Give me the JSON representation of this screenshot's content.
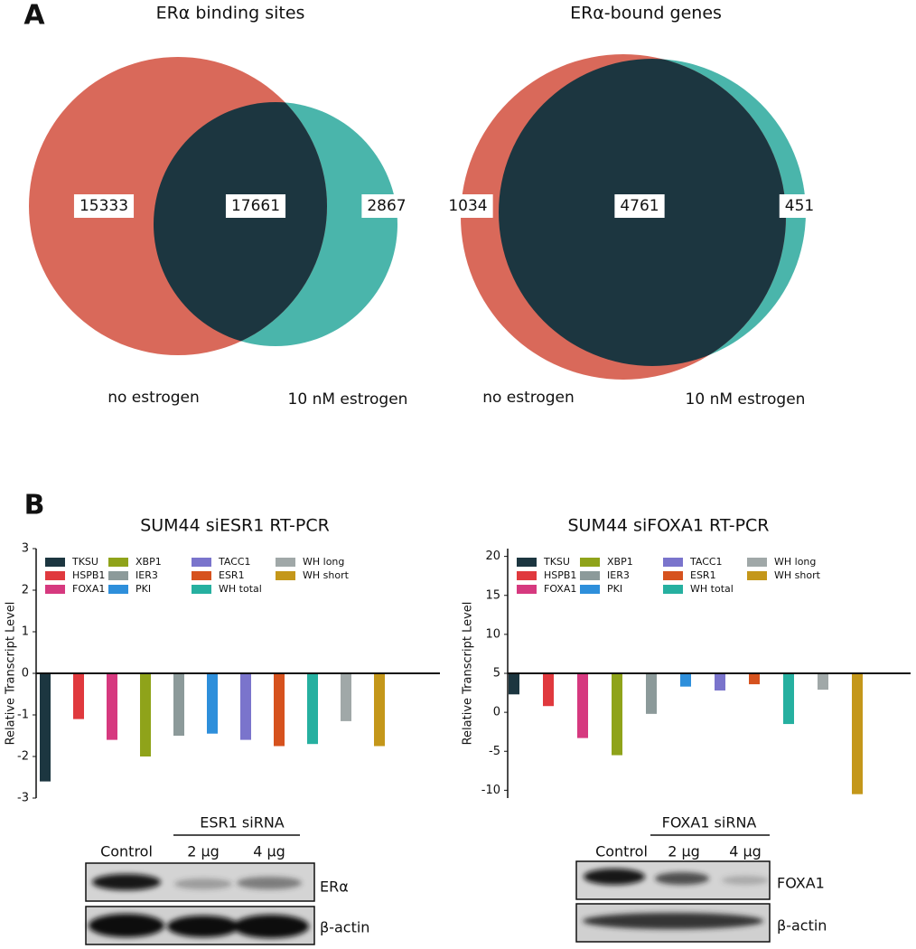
{
  "panels": [
    "A",
    "B"
  ],
  "chart_data": [
    {
      "type": "venn",
      "title": "ERα binding sites",
      "sets": [
        {
          "name": "no estrogen",
          "color": "#d9695a"
        },
        {
          "name": "10 nM estrogen",
          "color": "#4ab5ab"
        }
      ],
      "overlap_color": "#1c3640",
      "values": [
        15333,
        17661,
        2867
      ]
    },
    {
      "type": "venn",
      "title": "ERα-bound genes",
      "sets": [
        {
          "name": "no estrogen",
          "color": "#d9695a"
        },
        {
          "name": "10 nM estrogen",
          "color": "#4ab5ab"
        }
      ],
      "overlap_color": "#1c3640",
      "values": [
        1034,
        4761,
        451
      ]
    },
    {
      "type": "bar",
      "title": "SUM44 siESR1 RT-PCR",
      "y_label": "Relative Transcript Level",
      "categories": [
        "TKSU",
        "HSPB1",
        "FOXA1",
        "XBP1",
        "IER3",
        "PKI",
        "TACC1",
        "ESR1",
        "WH total",
        "WH long",
        "WH short"
      ],
      "colors": [
        "#1c3640",
        "#e0393e",
        "#d6397f",
        "#8fa31a",
        "#8c9a9a",
        "#2e8fdb",
        "#7a74cc",
        "#d6521e",
        "#26b0a0",
        "#a0a8a8",
        "#c4971a"
      ],
      "values": [
        -2.6,
        -1.1,
        -1.6,
        -2.0,
        -1.5,
        -1.45,
        -1.6,
        -1.75,
        -1.7,
        -1.15,
        -1.75
      ],
      "baseline": 0,
      "ylim": [
        -3,
        3
      ],
      "yticks": [
        -3,
        -2,
        -1,
        0,
        1,
        2,
        3
      ],
      "grid": false,
      "legend": "top"
    },
    {
      "type": "bar",
      "title": "SUM44 siFOXA1 RT-PCR",
      "y_label": "Relative Transcript Level",
      "categories": [
        "TKSU",
        "HSPB1",
        "FOXA1",
        "XBP1",
        "IER3",
        "PKI",
        "TACC1",
        "ESR1",
        "WH total",
        "WH long",
        "WH short"
      ],
      "colors": [
        "#1c3640",
        "#e0393e",
        "#d6397f",
        "#8fa31a",
        "#8c9a9a",
        "#2e8fdb",
        "#7a74cc",
        "#d6521e",
        "#26b0a0",
        "#a0a8a8",
        "#c4971a"
      ],
      "values": [
        2.3,
        0.8,
        -3.3,
        -5.5,
        -0.2,
        3.3,
        2.8,
        3.6,
        -1.5,
        2.9,
        -10.5
      ],
      "baseline": 5,
      "ylim": [
        -11,
        21
      ],
      "yticks": [
        -10,
        -5,
        0,
        5,
        10,
        15,
        20
      ],
      "grid": false,
      "legend": "top"
    }
  ],
  "blots": [
    {
      "treatment": "ESR1 siRNA",
      "lanes": [
        "Control",
        "2 μg",
        "4 μg"
      ],
      "proteins": [
        "ERα",
        "β-actin"
      ]
    },
    {
      "treatment": "FOXA1 siRNA",
      "lanes": [
        "Control",
        "2 μg",
        "4 μg"
      ],
      "proteins": [
        "FOXA1",
        "β-actin"
      ]
    }
  ]
}
